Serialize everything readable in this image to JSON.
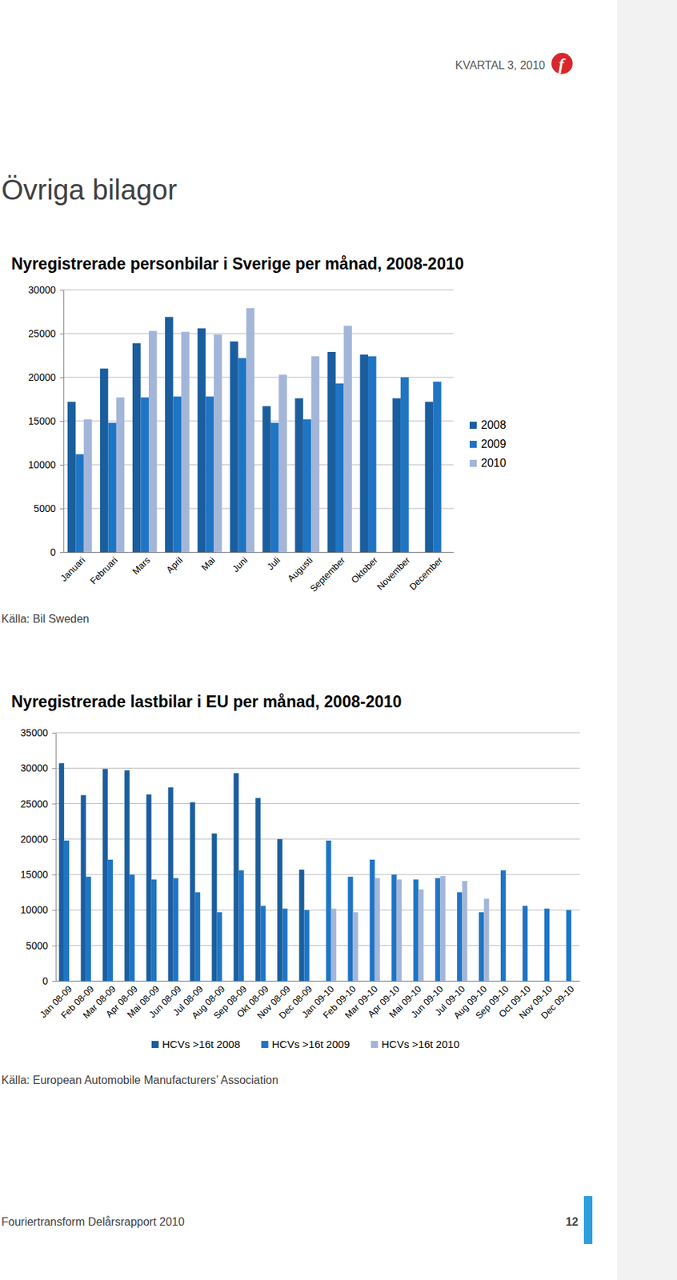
{
  "header": {
    "text": "KVARTAL 3, 2010",
    "logo": "f"
  },
  "heading": "Övriga bilagor",
  "chart_data": [
    {
      "type": "bar",
      "title": "Nyregistrerade personbilar i Sverige per månad, 2008-2010",
      "categories": [
        "Januari",
        "Februari",
        "Mars",
        "April",
        "Mai",
        "Juni",
        "Juli",
        "Augusti",
        "September",
        "Oktober",
        "November",
        "December"
      ],
      "series": [
        {
          "name": "2008",
          "color": "#1b5e9e",
          "values": [
            17200,
            21000,
            23900,
            26900,
            25600,
            24100,
            16700,
            17600,
            22900,
            22600,
            17600,
            17200
          ]
        },
        {
          "name": "2009",
          "color": "#1f75c4",
          "values": [
            11200,
            14800,
            17700,
            17800,
            17800,
            22200,
            14800,
            15200,
            19300,
            22400,
            20000,
            19500
          ]
        },
        {
          "name": "2010",
          "color": "#a3b6d9",
          "values": [
            15200,
            17700,
            25300,
            25200,
            24900,
            27900,
            20300,
            22400,
            25900,
            null,
            null,
            null
          ]
        }
      ],
      "ylim": [
        0,
        30000
      ],
      "yticks": [
        0,
        5000,
        10000,
        15000,
        20000,
        25000,
        30000
      ],
      "grid": true,
      "legend": "right",
      "source": "Källa: Bil Sweden"
    },
    {
      "type": "bar",
      "title": "Nyregistrerade lastbilar i EU per månad, 2008-2010",
      "categories": [
        "Jan 08-09",
        "Feb 08-09",
        "Mar 08-09",
        "Apr 08-09",
        "Mai 08-09",
        "Jun 08-09",
        "Jul 08-09",
        "Aug 08-09",
        "Sep 08-09",
        "Okt 08-09",
        "Nov 08-09",
        "Dec 08-09",
        "Jan 09-10",
        "Feb 09-10",
        "Mar 09-10",
        "Apr 09-10",
        "Mai 09-10",
        "Jun 09-10",
        "Jul 09-10",
        "Aug 09-10",
        "Sep 09-10",
        "Oct 09-10",
        "Nov 09-10",
        "Dec 09-10"
      ],
      "series": [
        {
          "name": "HCVs >16t 2008",
          "color": "#1b5e9e",
          "values": [
            30700,
            26200,
            29900,
            29700,
            26300,
            27300,
            25200,
            20800,
            29300,
            25800,
            20000,
            15700,
            null,
            null,
            null,
            null,
            null,
            null,
            null,
            null,
            null,
            null,
            null,
            null
          ]
        },
        {
          "name": "HCVs >16t 2009",
          "color": "#1f75c4",
          "values": [
            19800,
            14700,
            17100,
            15000,
            14300,
            14500,
            12500,
            9700,
            15600,
            10600,
            10200,
            10000,
            19800,
            14700,
            17100,
            15000,
            14300,
            14500,
            12500,
            9700,
            15600,
            10600,
            10200,
            10000
          ]
        },
        {
          "name": "HCVs >16t 2010",
          "color": "#a3b6d9",
          "values": [
            null,
            null,
            null,
            null,
            null,
            null,
            null,
            null,
            null,
            null,
            null,
            null,
            10200,
            9700,
            14500,
            14300,
            12900,
            14800,
            14100,
            11600,
            null,
            null,
            null,
            null
          ]
        }
      ],
      "ylim": [
        0,
        35000
      ],
      "yticks": [
        0,
        5000,
        10000,
        15000,
        20000,
        25000,
        30000,
        35000
      ],
      "grid": true,
      "legend": "bottom",
      "source": "Källa: European Automobile Manufacturers’ Association"
    }
  ],
  "footer": {
    "text": "Fouriertransform Delårsrapport 2010",
    "page": 12
  }
}
